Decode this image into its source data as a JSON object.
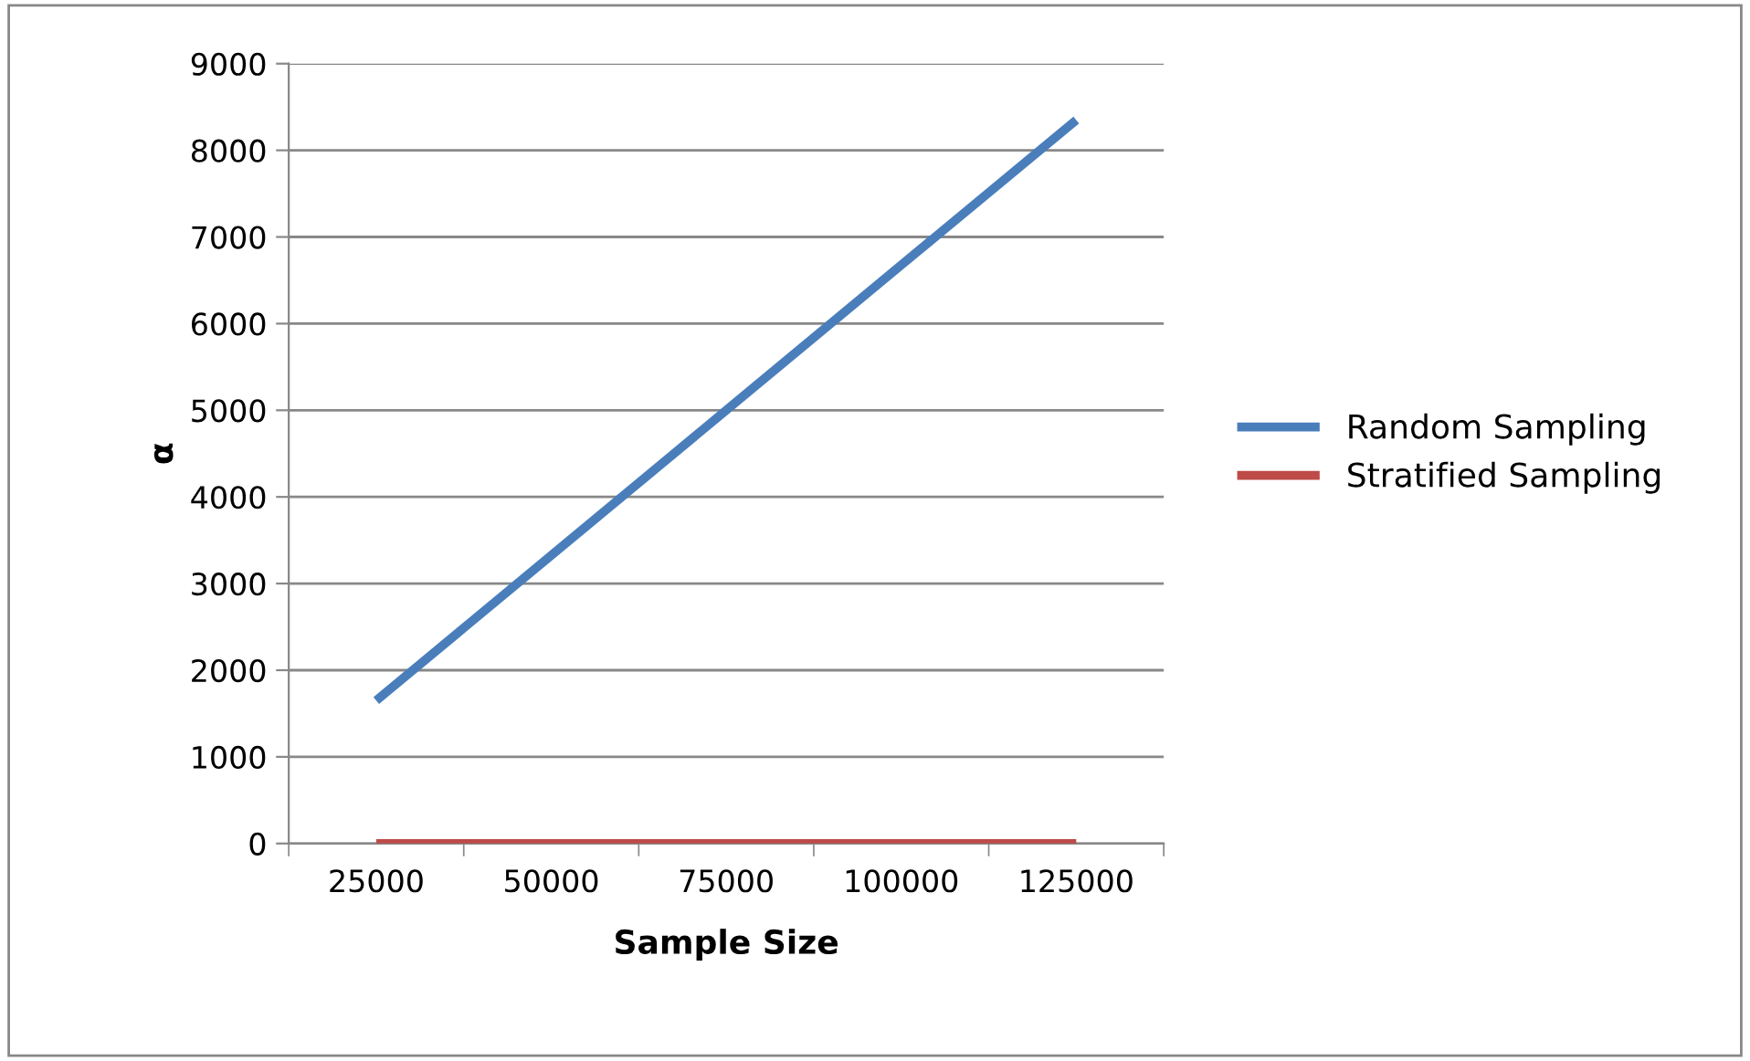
{
  "chart_data": {
    "type": "line",
    "xlabel": "Sample Size",
    "ylabel": "α",
    "categories": [
      "25000",
      "50000",
      "75000",
      "100000",
      "125000"
    ],
    "series": [
      {
        "name": "Random Sampling",
        "color": "#4a7ebb",
        "values": [
          1650,
          3325,
          5000,
          6675,
          8350
        ]
      },
      {
        "name": "Stratified Sampling",
        "color": "#be4b48",
        "values": [
          0,
          0,
          0,
          0,
          0
        ]
      }
    ],
    "ylim": [
      0,
      9000
    ],
    "yticks": [
      0,
      1000,
      2000,
      3000,
      4000,
      5000,
      6000,
      7000,
      8000,
      9000
    ],
    "grid": "y",
    "legend": "right",
    "marker": "none",
    "line_style": "solid"
  }
}
